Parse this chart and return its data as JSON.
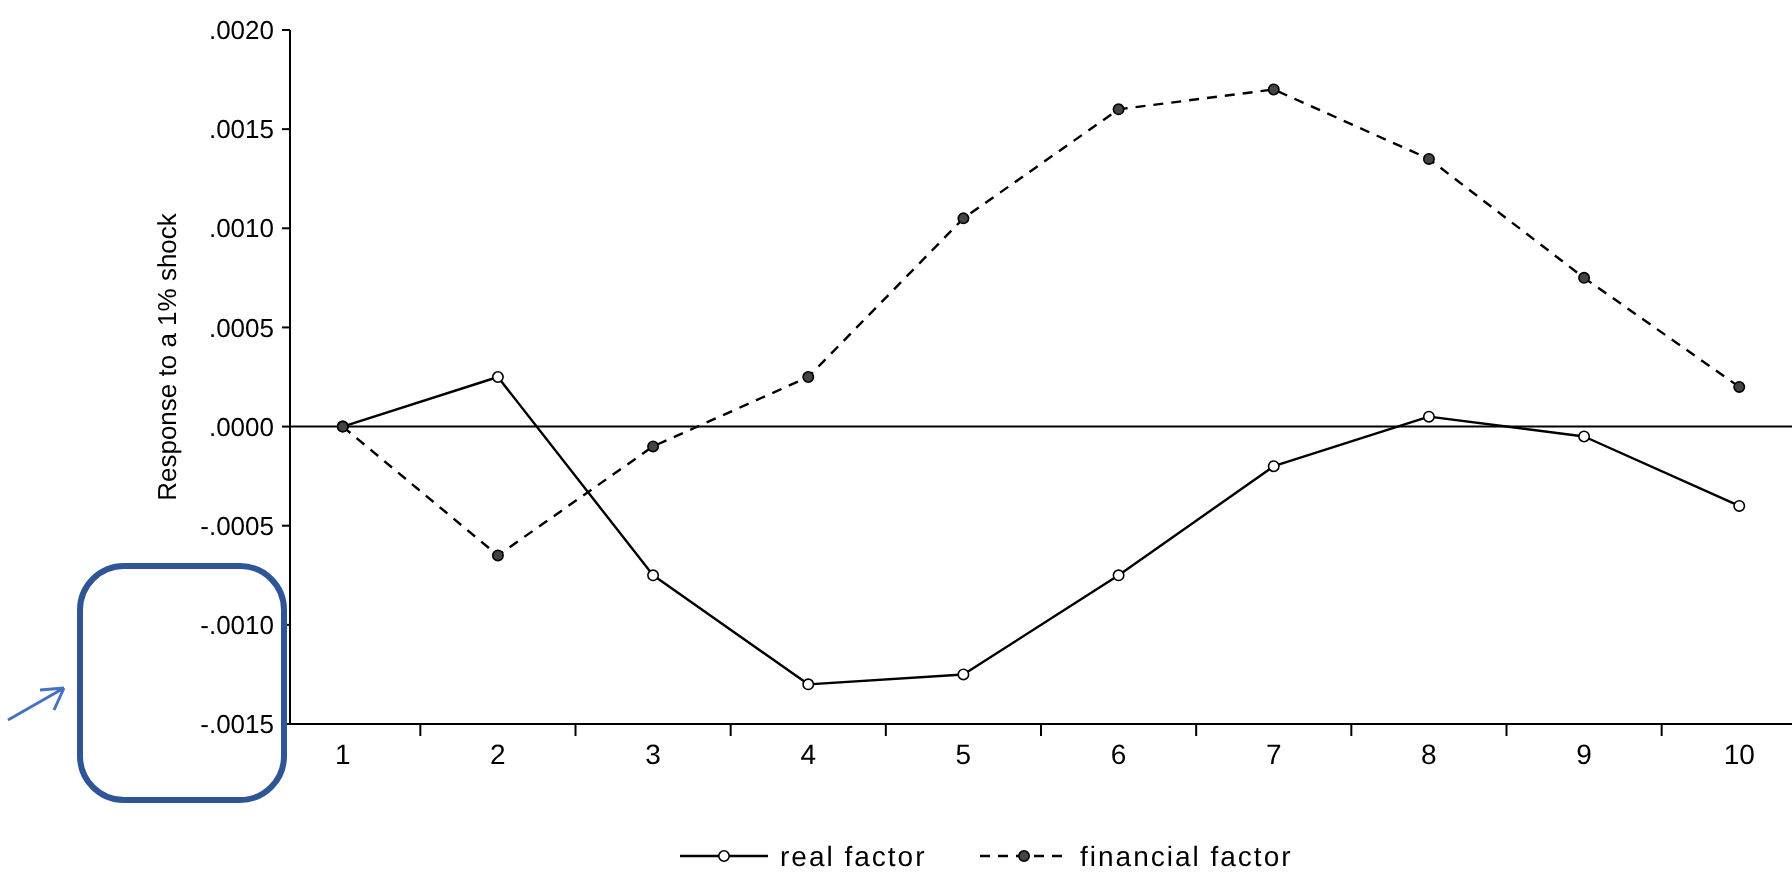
{
  "chart_data": {
    "type": "line",
    "ylabel": "Response to a 1% shock",
    "categories": [
      "1",
      "2",
      "3",
      "4",
      "5",
      "6",
      "7",
      "8",
      "9",
      "10"
    ],
    "series": [
      {
        "name": "real factor",
        "color": "#000000",
        "line_style": "solid",
        "values": [
          0,
          0.00025,
          -0.00075,
          -0.0013,
          -0.00125,
          -0.00075,
          -0.0002,
          5e-05,
          -5e-05,
          -0.0004
        ]
      },
      {
        "name": "financial factor",
        "color": "#000000",
        "line_style": "dashed",
        "values": [
          0,
          -0.00065,
          -0.0001,
          0.00025,
          0.00105,
          0.0016,
          0.0017,
          0.00135,
          0.00075,
          0.0002
        ]
      }
    ],
    "ylim": [
      -0.0015,
      0.002
    ],
    "yticks": [
      {
        "value": -0.0015,
        "label": "-.0015"
      },
      {
        "value": -0.001,
        "label": "-.0010"
      },
      {
        "value": -0.0005,
        "label": "-.0005"
      },
      {
        "value": 0,
        "label": ".0000"
      },
      {
        "value": 0.0005,
        "label": ".0005"
      },
      {
        "value": 0.001,
        "label": ".0010"
      },
      {
        "value": 0.0015,
        "label": ".0015"
      },
      {
        "value": 0.002,
        "label": ".0020"
      }
    ],
    "ref_lines": [
      {
        "axis": "y",
        "value": 0,
        "color": "#000000"
      }
    ],
    "grid": false,
    "legend": "bottom",
    "marker": "circle"
  }
}
